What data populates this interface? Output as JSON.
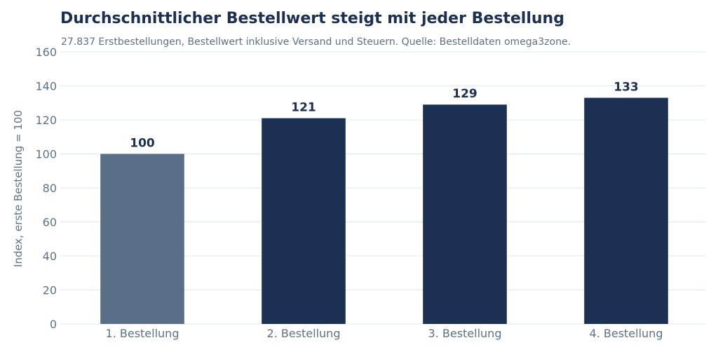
{
  "chart_data": {
    "type": "bar",
    "title": "Durchschnittlicher Bestellwert steigt mit jeder Bestellung",
    "subtitle": "27.837 Erstbestellungen, Bestellwert inklusive Versand und Steuern. Quelle: Bestelldaten omega3zone.",
    "xlabel": "",
    "ylabel": "Index, erste Bestellung = 100",
    "categories": [
      "1. Bestellung",
      "2. Bestellung",
      "3. Bestellung",
      "4. Bestellung"
    ],
    "values": [
      100,
      121,
      129,
      133
    ],
    "data_labels": [
      "100",
      "121",
      "129",
      "133"
    ],
    "bar_colors": [
      "#5a6f87",
      "#1b3052",
      "#1b3052",
      "#1b3052"
    ],
    "ylim": [
      0,
      160
    ],
    "yticks": [
      0,
      20,
      40,
      60,
      80,
      100,
      120,
      140,
      160
    ],
    "grid": true,
    "legend": "none"
  }
}
